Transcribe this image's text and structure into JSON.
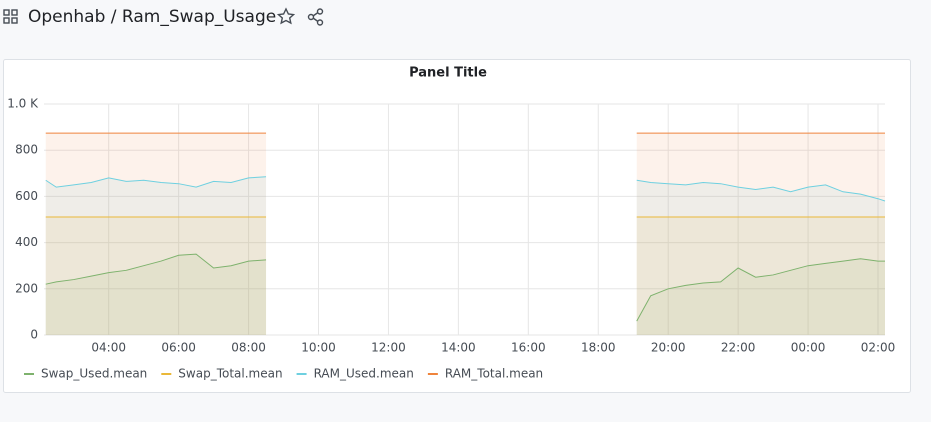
{
  "header": {
    "title": "Openhab / Ram_Swap_Usage"
  },
  "chart_data": {
    "type": "line",
    "title": "Panel Title",
    "x": [
      2.2,
      2.5,
      3,
      3.5,
      4,
      4.5,
      5,
      5.5,
      6,
      6.5,
      7,
      7.5,
      8,
      8.5,
      13.8,
      19.1,
      19.5,
      20,
      20.5,
      21,
      21.5,
      22,
      22.5,
      23,
      23.5,
      24,
      24.5,
      25,
      25.5,
      26,
      26.2
    ],
    "series": [
      {
        "name": "Swap_Used.mean",
        "color": "#7eb26d",
        "values": [
          220,
          230,
          240,
          255,
          270,
          280,
          300,
          320,
          345,
          350,
          290,
          300,
          320,
          325,
          null,
          60,
          170,
          200,
          215,
          225,
          230,
          290,
          250,
          260,
          280,
          300,
          310,
          320,
          330,
          320,
          320
        ]
      },
      {
        "name": "Swap_Total.mean",
        "color": "#eab839",
        "values": [
          511,
          511,
          511,
          511,
          511,
          511,
          511,
          511,
          511,
          511,
          511,
          511,
          511,
          511,
          null,
          511,
          511,
          511,
          511,
          511,
          511,
          511,
          511,
          511,
          511,
          511,
          511,
          511,
          511,
          511,
          511
        ]
      },
      {
        "name": "RAM_Used.mean",
        "color": "#6ed0e0",
        "values": [
          670,
          640,
          650,
          660,
          680,
          665,
          670,
          660,
          655,
          640,
          665,
          660,
          680,
          685,
          null,
          670,
          660,
          655,
          650,
          660,
          655,
          640,
          630,
          640,
          620,
          640,
          650,
          620,
          610,
          590,
          580
        ]
      },
      {
        "name": "RAM_Total.mean",
        "color": "#ef843c",
        "values": [
          874,
          874,
          874,
          874,
          874,
          874,
          874,
          874,
          874,
          874,
          874,
          874,
          874,
          874,
          null,
          874,
          874,
          874,
          874,
          874,
          874,
          874,
          874,
          874,
          874,
          874,
          874,
          874,
          874,
          874,
          874
        ]
      }
    ],
    "xlim": [
      2.15,
      26.2
    ],
    "xticks": [
      {
        "value": 4,
        "label": "04:00"
      },
      {
        "value": 6,
        "label": "06:00"
      },
      {
        "value": 8,
        "label": "08:00"
      },
      {
        "value": 10,
        "label": "10:00"
      },
      {
        "value": 12,
        "label": "12:00"
      },
      {
        "value": 14,
        "label": "14:00"
      },
      {
        "value": 16,
        "label": "16:00"
      },
      {
        "value": 18,
        "label": "18:00"
      },
      {
        "value": 20,
        "label": "20:00"
      },
      {
        "value": 22,
        "label": "22:00"
      },
      {
        "value": 24,
        "label": "00:00"
      },
      {
        "value": 26,
        "label": "02:00"
      }
    ],
    "ylim": [
      0,
      1000
    ],
    "yticks": [
      0,
      200,
      400,
      600,
      800,
      {
        "value": 1000,
        "label": "1.0 K"
      }
    ],
    "grid": true
  }
}
